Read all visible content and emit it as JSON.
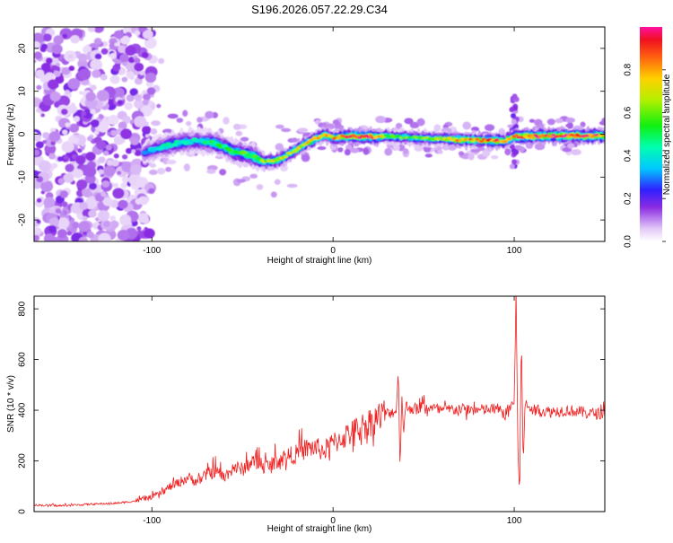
{
  "title": "S196.2026.057.22.29.C34",
  "colors": {
    "snr_line": "#f02020",
    "frame": "#000000"
  },
  "colorbar": {
    "label": "Normalized spectral amplitude",
    "ticks": [
      "0.0",
      "0.2",
      "0.4",
      "0.6",
      "0.8"
    ],
    "tick_values": [
      0.0,
      0.2,
      0.4,
      0.6,
      0.8
    ],
    "range": [
      0,
      1
    ],
    "stops": [
      {
        "v": 0.0,
        "c": "#ffffff"
      },
      {
        "v": 0.06,
        "c": "#e2c8f8"
      },
      {
        "v": 0.16,
        "c": "#8a2be2"
      },
      {
        "v": 0.24,
        "c": "#3020ff"
      },
      {
        "v": 0.34,
        "c": "#00c8ff"
      },
      {
        "v": 0.44,
        "c": "#00ffb0"
      },
      {
        "v": 0.54,
        "c": "#10f010"
      },
      {
        "v": 0.66,
        "c": "#b4f000"
      },
      {
        "v": 0.76,
        "c": "#ffd000"
      },
      {
        "v": 0.86,
        "c": "#ff6010"
      },
      {
        "v": 0.94,
        "c": "#f01020"
      },
      {
        "v": 1.0,
        "c": "#ff10a0"
      }
    ]
  },
  "chart_data": [
    {
      "type": "heatmap",
      "title": "S196.2026.057.22.29.C34",
      "xlabel": "Height of straight line (km)",
      "ylabel": "Frequency (Hz)",
      "xlim": [
        -165,
        150
      ],
      "ylim": [
        -25,
        25
      ],
      "xticks": [
        -100,
        0,
        100
      ],
      "xtick_labels": [
        "-100",
        "0",
        "100"
      ],
      "yticks": [
        -20,
        -10,
        0,
        10,
        20
      ],
      "ytick_labels": [
        "-20",
        "-10",
        "0",
        "10",
        "20"
      ],
      "ridge": {
        "x": [
          -105,
          -95,
          -85,
          -75,
          -65,
          -55,
          -45,
          -38,
          -30,
          -20,
          -10,
          -5,
          0,
          10,
          20,
          30,
          40,
          50,
          60,
          70,
          80,
          90,
          95,
          100,
          105,
          110,
          120,
          130,
          140,
          150
        ],
        "freq": [
          -4.5,
          -3,
          -2,
          -1.5,
          -2,
          -4,
          -5,
          -6.5,
          -6,
          -3.5,
          -1,
          -0.2,
          -0.8,
          -0.5,
          -0.6,
          -0.5,
          -0.7,
          -1,
          -1,
          -1.3,
          -1.4,
          -1.6,
          -1.5,
          -0.5,
          -0.5,
          -0.5,
          -0.4,
          -0.4,
          -0.4,
          -0.4
        ],
        "amplitude": [
          0.32,
          0.4,
          0.45,
          0.42,
          0.5,
          0.5,
          0.55,
          0.62,
          0.72,
          0.7,
          0.72,
          0.75,
          0.78,
          0.9,
          0.92,
          0.6,
          0.55,
          0.6,
          0.62,
          0.8,
          0.78,
          0.85,
          0.7,
          0.82,
          0.88,
          0.9,
          0.92,
          0.92,
          0.9,
          0.85
        ]
      },
      "noise_region_x": [
        -165,
        -100
      ],
      "spike_x": 100
    },
    {
      "type": "line",
      "xlabel": "Height of straight line (km)",
      "ylabel": "SNR (10 * v/v)",
      "xlim": [
        -165,
        150
      ],
      "ylim": [
        0,
        850
      ],
      "xticks": [
        -100,
        0,
        100
      ],
      "xtick_labels": [
        "-100",
        "0",
        "100"
      ],
      "yticks": [
        0,
        200,
        400,
        600,
        800
      ],
      "ytick_labels": [
        "0",
        "200",
        "400",
        "600",
        "800"
      ],
      "series": [
        {
          "name": "SNR",
          "x": [
            -165,
            -150,
            -135,
            -120,
            -110,
            -100,
            -95,
            -90,
            -85,
            -80,
            -75,
            -70,
            -65,
            -60,
            -55,
            -50,
            -45,
            -40,
            -35,
            -30,
            -25,
            -20,
            -15,
            -10,
            -5,
            0,
            5,
            10,
            15,
            20,
            25,
            30,
            35,
            36,
            37,
            38,
            39,
            40,
            45,
            50,
            60,
            70,
            80,
            90,
            95,
            100,
            101,
            102,
            103,
            104,
            105,
            106,
            110,
            120,
            130,
            140,
            150
          ],
          "values": [
            25,
            22,
            28,
            32,
            40,
            55,
            70,
            95,
            110,
            130,
            115,
            140,
            155,
            130,
            170,
            160,
            190,
            185,
            170,
            200,
            210,
            220,
            240,
            245,
            230,
            260,
            280,
            300,
            320,
            340,
            360,
            380,
            395,
            560,
            180,
            460,
            300,
            410,
            400,
            410,
            395,
            400,
            395,
            400,
            380,
            430,
            850,
            250,
            60,
            700,
            180,
            420,
            395,
            390,
            395,
            385,
            380
          ]
        }
      ]
    }
  ]
}
